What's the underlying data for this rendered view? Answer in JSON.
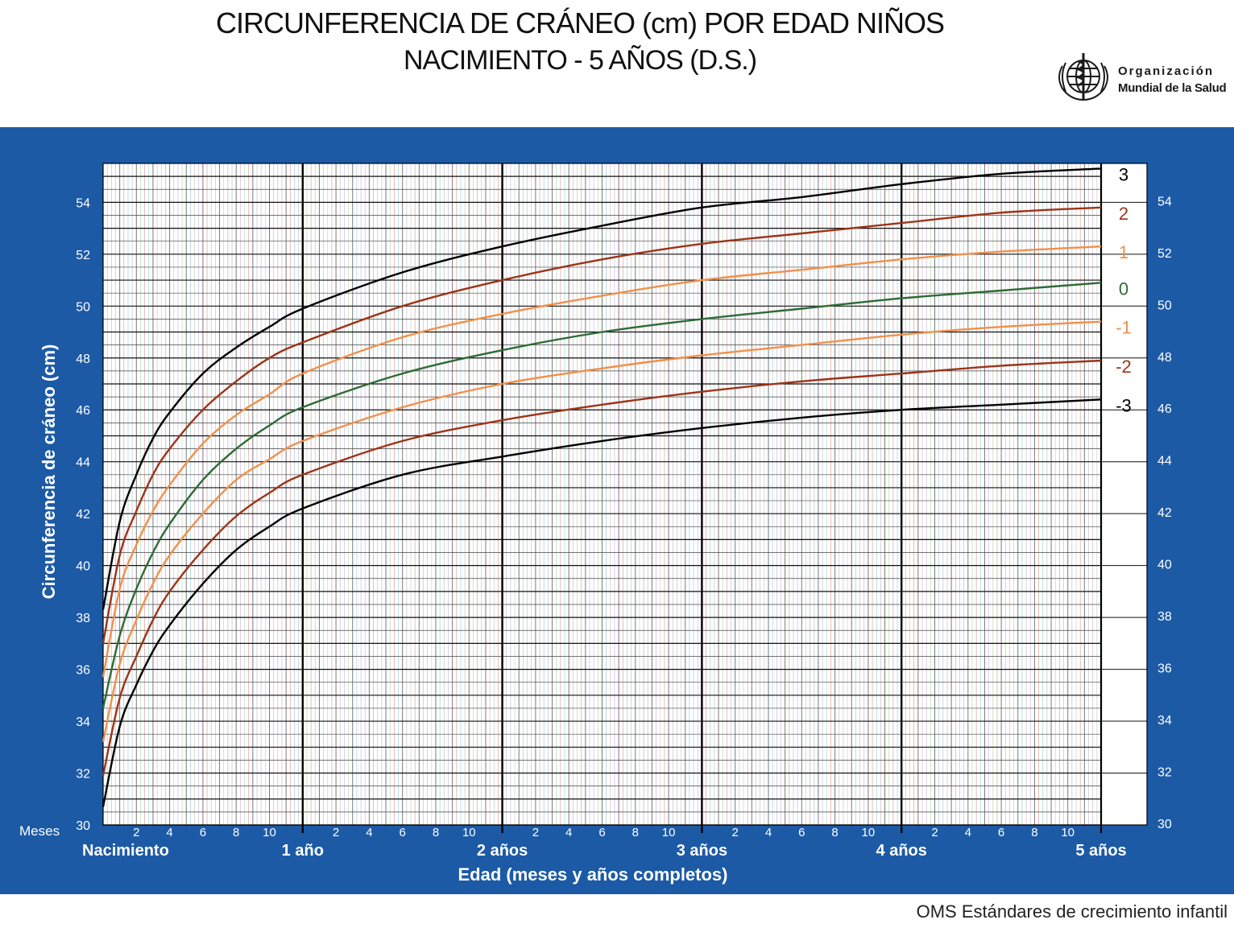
{
  "header": {
    "title_line1": "CIRCUNFERENCIA DE CRÁNEO (cm) POR EDAD NIÑOS",
    "title_line2": "NACIMIENTO - 5 AÑOS (D.S.)",
    "org_line1": "Organización",
    "org_line2": "Mundial de la Salud",
    "logo_icon": "who-emblem-icon"
  },
  "footer": {
    "text": "OMS Estándares de crecimiento infantil"
  },
  "colors": {
    "panel_blue": "#1c5aa6",
    "sd3": "#000000",
    "sd2": "#9c3418",
    "sd1": "#f0904a",
    "sd0": "#2e6a34"
  },
  "chart_data": {
    "type": "line",
    "title": "CIRCUNFERENCIA DE CRÁNEO (cm) POR EDAD NIÑOS",
    "subtitle": "NACIMIENTO - 5 AÑOS (D.S.)",
    "xlabel": "Edad (meses y años completos)",
    "ylabel": "Circunferencia de cráneo (cm)",
    "x_unit_label": "Meses",
    "xlim": [
      0,
      60
    ],
    "ylim": [
      30,
      55.5
    ],
    "grid": true,
    "y_ticks": [
      30,
      32,
      34,
      36,
      38,
      40,
      42,
      44,
      46,
      48,
      50,
      52,
      54
    ],
    "x_month_tick_labels": [
      "2",
      "4",
      "6",
      "8",
      "10"
    ],
    "x_year_labels": [
      {
        "month": 0,
        "label": "Nacimiento"
      },
      {
        "month": 12,
        "label": "1 año"
      },
      {
        "month": 24,
        "label": "2 años"
      },
      {
        "month": 36,
        "label": "3 años"
      },
      {
        "month": 48,
        "label": "4 años"
      },
      {
        "month": 60,
        "label": "5 años"
      }
    ],
    "x": [
      0,
      1,
      2,
      3,
      4,
      6,
      8,
      10,
      12,
      18,
      24,
      30,
      36,
      42,
      48,
      54,
      60
    ],
    "series": [
      {
        "name": "3",
        "color": "#000000",
        "values": [
          38.3,
          41.7,
          43.5,
          44.9,
          45.9,
          47.4,
          48.4,
          49.2,
          49.9,
          51.3,
          52.3,
          53.1,
          53.8,
          54.2,
          54.7,
          55.1,
          55.3
        ]
      },
      {
        "name": "2",
        "color": "#9c3418",
        "values": [
          37.0,
          40.4,
          42.1,
          43.5,
          44.5,
          46.0,
          47.1,
          48.0,
          48.6,
          50.0,
          51.0,
          51.8,
          52.4,
          52.8,
          53.2,
          53.6,
          53.8
        ]
      },
      {
        "name": "1",
        "color": "#f0904a",
        "values": [
          35.7,
          39.1,
          40.8,
          42.1,
          43.1,
          44.7,
          45.8,
          46.6,
          47.4,
          48.8,
          49.7,
          50.4,
          51.0,
          51.4,
          51.8,
          52.1,
          52.3
        ]
      },
      {
        "name": "0",
        "color": "#2e6a34",
        "values": [
          34.5,
          37.3,
          39.1,
          40.5,
          41.6,
          43.3,
          44.5,
          45.4,
          46.1,
          47.4,
          48.3,
          49.0,
          49.5,
          49.9,
          50.3,
          50.6,
          50.9
        ]
      },
      {
        "name": "-1",
        "color": "#f0904a",
        "values": [
          33.2,
          36.2,
          37.9,
          39.3,
          40.4,
          42.0,
          43.3,
          44.1,
          44.8,
          46.1,
          47.0,
          47.6,
          48.1,
          48.5,
          48.9,
          49.2,
          49.4
        ]
      },
      {
        "name": "-2",
        "color": "#9c3418",
        "values": [
          31.9,
          34.9,
          36.5,
          37.9,
          39.0,
          40.6,
          41.9,
          42.8,
          43.5,
          44.8,
          45.6,
          46.2,
          46.7,
          47.1,
          47.4,
          47.7,
          47.9
        ]
      },
      {
        "name": "-3",
        "color": "#000000",
        "values": [
          30.7,
          33.8,
          35.4,
          36.7,
          37.7,
          39.3,
          40.6,
          41.5,
          42.2,
          43.5,
          44.2,
          44.8,
          45.3,
          45.7,
          46.0,
          46.2,
          46.4
        ]
      }
    ]
  }
}
